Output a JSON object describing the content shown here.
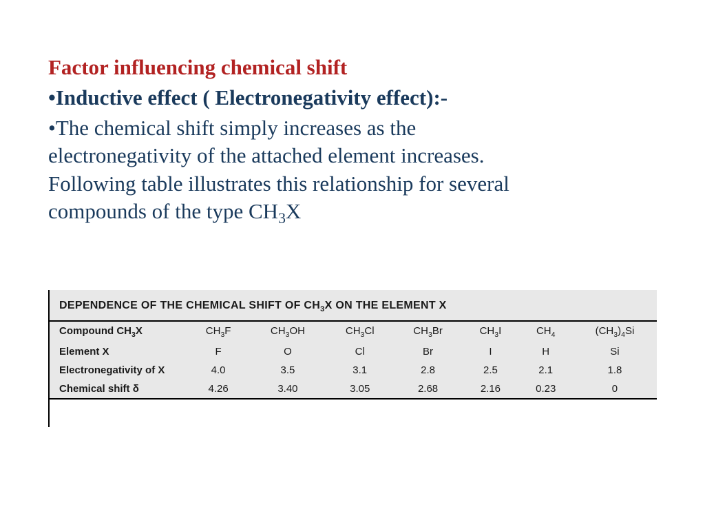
{
  "heading": {
    "title": "Factor influencing chemical shift",
    "subtitle_prefix": "•",
    "subtitle": "Inductive effect ( Electronegativity effect):-",
    "body_prefix": "•",
    "body_line1": "The chemical shift simply increases as the",
    "body_line2": "electronegativity of the attached element increases.",
    "body_line3": "Following table illustrates this relationship for several",
    "body_line4_a": "compounds of the type CH",
    "body_line4_sub": "3",
    "body_line4_b": "X"
  },
  "table": {
    "title_a": "DEPENDENCE OF THE CHEMICAL SHIFT OF CH",
    "title_sub": "3",
    "title_b": "X ON THE ELEMENT X",
    "row_labels": {
      "r1_a": "Compound CH",
      "r1_sub": "3",
      "r1_b": "X",
      "r2": "Element X",
      "r3": "Electronegativity of X",
      "r4": "Chemical shift δ"
    },
    "cols": {
      "c1": {
        "compound_a": "CH",
        "compound_sub": "3",
        "compound_b": "F",
        "element": "F",
        "en": "4.0",
        "shift": "4.26"
      },
      "c2": {
        "compound_a": "CH",
        "compound_sub": "3",
        "compound_b": "OH",
        "element": "O",
        "en": "3.5",
        "shift": "3.40"
      },
      "c3": {
        "compound_a": "CH",
        "compound_sub": "3",
        "compound_b": "Cl",
        "element": "Cl",
        "en": "3.1",
        "shift": "3.05"
      },
      "c4": {
        "compound_a": "CH",
        "compound_sub": "3",
        "compound_b": "Br",
        "element": "Br",
        "en": "2.8",
        "shift": "2.68"
      },
      "c5": {
        "compound_a": "CH",
        "compound_sub": "3",
        "compound_b": "I",
        "element": "I",
        "en": "2.5",
        "shift": "2.16"
      },
      "c6": {
        "compound_a": "CH",
        "compound_sub": "4",
        "compound_b": "",
        "element": "H",
        "en": "2.1",
        "shift": "0.23"
      },
      "c7": {
        "compound_a": "(CH",
        "compound_sub": "3",
        "compound_b": ")",
        "compound_c_sub": "4",
        "compound_d": "Si",
        "element": "Si",
        "en": "1.8",
        "shift": "0"
      }
    }
  },
  "style": {
    "title_color": "#b22222",
    "text_color": "#1a3a5c",
    "table_bg": "#e8e8e8",
    "border_color": "#000000",
    "heading_fontsize": 31,
    "table_title_fontsize": 16,
    "table_cell_fontsize": 15
  }
}
